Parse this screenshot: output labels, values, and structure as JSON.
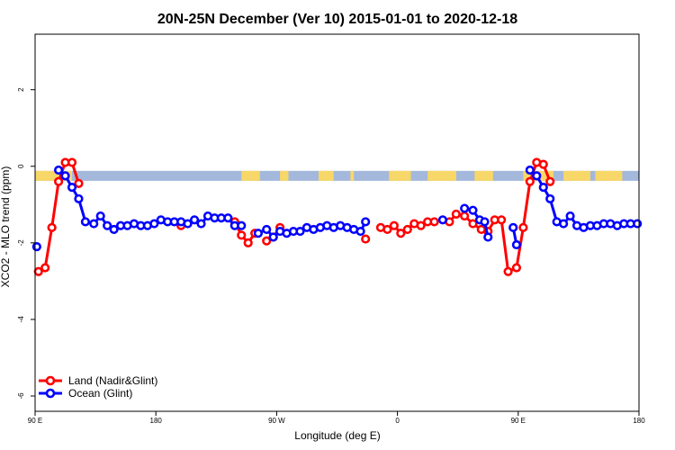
{
  "chart_data": {
    "type": "line",
    "title": "20N-25N December (Ver 10)   2015-01-01 to 2020-12-18",
    "xlabel": "Longitude (deg E)",
    "ylabel": "XCO2 - MLO trend (ppm)",
    "xlim": [
      90,
      450
    ],
    "ylim": [
      -6.4,
      3.45
    ],
    "x_ticks": [
      {
        "value": 90,
        "label": "90 E"
      },
      {
        "value": 162,
        "label": "180"
      },
      {
        "value": 234,
        "label": "90 W"
      },
      {
        "value": 306,
        "label": "0"
      },
      {
        "value": 378,
        "label": "90 E"
      },
      {
        "value": 450,
        "label": "180"
      }
    ],
    "y_ticks": [
      {
        "value": 2,
        "label": "2"
      },
      {
        "value": 0,
        "label": "0"
      },
      {
        "value": -2,
        "label": "-2"
      },
      {
        "value": -4,
        "label": "-4"
      },
      {
        "value": -6,
        "label": "-6"
      }
    ],
    "grid": false,
    "legend_position": "bottom-left",
    "landmask_band": {
      "y_top": -0.12,
      "y_bottom": -0.38,
      "ocean_color": "#a4b8dc",
      "land_color": "#f8d769",
      "land_x_ranges": [
        [
          90,
          112
        ],
        [
          213,
          224
        ],
        [
          236,
          241
        ],
        [
          259,
          268
        ],
        [
          278,
          280
        ],
        [
          301,
          314
        ],
        [
          324,
          341
        ],
        [
          352,
          363
        ],
        [
          381,
          399
        ],
        [
          405,
          421
        ],
        [
          424,
          440
        ]
      ]
    },
    "series": [
      {
        "name": "Land (Nadir&Glint)",
        "color": "#ff0000",
        "points": [
          [
            92,
            -2.75
          ],
          [
            96,
            -2.65
          ],
          [
            100,
            -1.6
          ],
          [
            104,
            -0.4
          ],
          [
            108,
            0.1
          ],
          [
            112,
            0.1
          ],
          [
            116,
            -0.45
          ],
          [
            177,
            -1.55
          ],
          [
            209,
            -1.45
          ],
          [
            213,
            -1.8
          ],
          [
            217,
            -2.0
          ],
          [
            221,
            -1.75
          ],
          [
            228,
            -1.95
          ],
          [
            232,
            -1.85
          ],
          [
            236,
            -1.6
          ],
          [
            287,
            -1.9
          ],
          [
            296,
            -1.6
          ],
          [
            300,
            -1.65
          ],
          [
            304,
            -1.55
          ],
          [
            308,
            -1.75
          ],
          [
            312,
            -1.65
          ],
          [
            316,
            -1.5
          ],
          [
            320,
            -1.55
          ],
          [
            324,
            -1.45
          ],
          [
            328,
            -1.45
          ],
          [
            337,
            -1.45
          ],
          [
            341,
            -1.25
          ],
          [
            346,
            -1.3
          ],
          [
            351,
            -1.5
          ],
          [
            356,
            -1.65
          ],
          [
            360,
            -1.7
          ],
          [
            364,
            -1.4
          ],
          [
            368,
            -1.4
          ],
          [
            372,
            -2.75
          ],
          [
            377,
            -2.65
          ],
          [
            381,
            -1.6
          ],
          [
            385,
            -0.4
          ],
          [
            389,
            0.1
          ],
          [
            393,
            0.05
          ],
          [
            397,
            -0.4
          ]
        ]
      },
      {
        "name": "Ocean (Glint)",
        "color": "#0000ff",
        "points": [
          [
            91,
            -2.1
          ],
          [
            104,
            -0.1
          ],
          [
            108,
            -0.25
          ],
          [
            112,
            -0.55
          ],
          [
            116,
            -0.85
          ],
          [
            120,
            -1.45
          ],
          [
            125,
            -1.5
          ],
          [
            129,
            -1.3
          ],
          [
            133,
            -1.55
          ],
          [
            137,
            -1.65
          ],
          [
            141,
            -1.55
          ],
          [
            145,
            -1.55
          ],
          [
            149,
            -1.5
          ],
          [
            153,
            -1.55
          ],
          [
            157,
            -1.55
          ],
          [
            161,
            -1.5
          ],
          [
            165,
            -1.4
          ],
          [
            169,
            -1.45
          ],
          [
            173,
            -1.45
          ],
          [
            177,
            -1.45
          ],
          [
            181,
            -1.5
          ],
          [
            185,
            -1.4
          ],
          [
            189,
            -1.5
          ],
          [
            193,
            -1.3
          ],
          [
            197,
            -1.35
          ],
          [
            201,
            -1.35
          ],
          [
            205,
            -1.35
          ],
          [
            209,
            -1.55
          ],
          [
            213,
            -1.55
          ],
          [
            223,
            -1.75
          ],
          [
            228,
            -1.65
          ],
          [
            232,
            -1.85
          ],
          [
            236,
            -1.7
          ],
          [
            240,
            -1.75
          ],
          [
            244,
            -1.7
          ],
          [
            248,
            -1.7
          ],
          [
            252,
            -1.6
          ],
          [
            256,
            -1.65
          ],
          [
            260,
            -1.6
          ],
          [
            264,
            -1.55
          ],
          [
            268,
            -1.6
          ],
          [
            272,
            -1.55
          ],
          [
            276,
            -1.6
          ],
          [
            280,
            -1.65
          ],
          [
            284,
            -1.7
          ],
          [
            287,
            -1.45
          ],
          [
            333,
            -1.4
          ],
          [
            346,
            -1.1
          ],
          [
            351,
            -1.15
          ],
          [
            355,
            -1.4
          ],
          [
            358,
            -1.45
          ],
          [
            360,
            -1.85
          ],
          [
            375,
            -1.6
          ],
          [
            377,
            -2.05
          ],
          [
            385,
            -0.1
          ],
          [
            389,
            -0.25
          ],
          [
            393,
            -0.55
          ],
          [
            397,
            -0.85
          ],
          [
            401,
            -1.45
          ],
          [
            405,
            -1.5
          ],
          [
            409,
            -1.3
          ],
          [
            413,
            -1.55
          ],
          [
            417,
            -1.6
          ],
          [
            421,
            -1.55
          ],
          [
            425,
            -1.55
          ],
          [
            429,
            -1.5
          ],
          [
            433,
            -1.5
          ],
          [
            437,
            -1.55
          ],
          [
            441,
            -1.5
          ],
          [
            445,
            -1.5
          ],
          [
            449,
            -1.5
          ]
        ]
      }
    ]
  }
}
